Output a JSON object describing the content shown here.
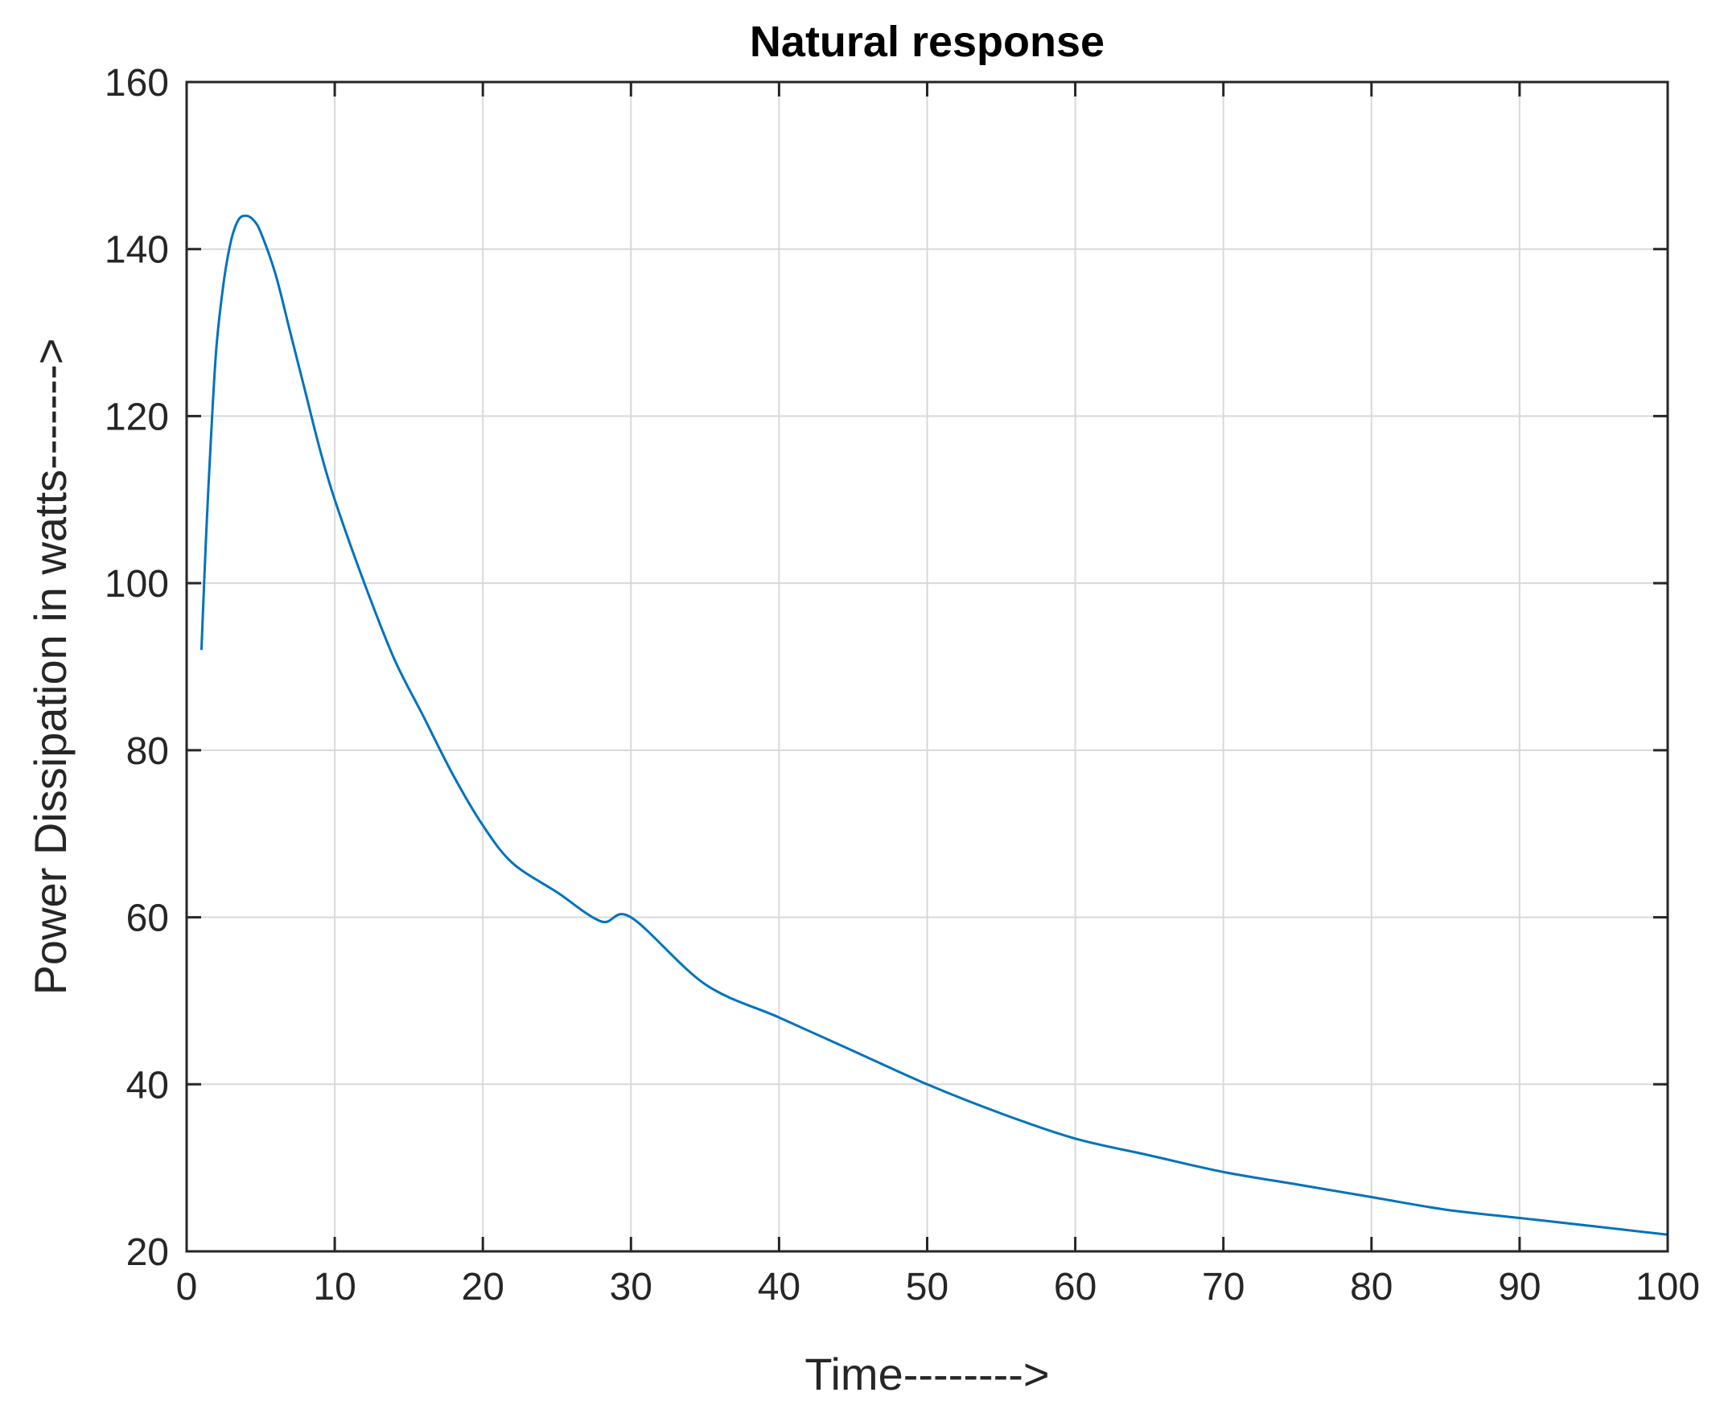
{
  "chart_data": {
    "type": "line",
    "title": "Natural response",
    "xlabel": "Time-------->",
    "ylabel": "Power Dissipation in watts------->",
    "xlim": [
      0,
      100
    ],
    "ylim": [
      20,
      160
    ],
    "xticks": [
      0,
      10,
      20,
      30,
      40,
      50,
      60,
      70,
      80,
      90,
      100
    ],
    "yticks": [
      20,
      40,
      60,
      80,
      100,
      120,
      140,
      160
    ],
    "grid": true,
    "series": [
      {
        "color": "#0072bd",
        "x": [
          1,
          1.3,
          1.6,
          2,
          2.5,
          3,
          3.5,
          4,
          4.5,
          5,
          6,
          7,
          8,
          9,
          10,
          12,
          14,
          16,
          18,
          20,
          22,
          25,
          28,
          30,
          35,
          40,
          45,
          50,
          55,
          60,
          65,
          70,
          75,
          80,
          85,
          90,
          95,
          100
        ],
        "y": [
          92,
          105,
          116,
          128,
          136,
          141,
          143.5,
          144,
          143.5,
          142,
          137,
          130,
          123,
          116,
          110,
          100,
          91,
          84,
          77,
          71,
          66.5,
          63,
          59.5,
          60,
          52,
          48,
          44,
          40,
          36.5,
          33.5,
          31.5,
          29.5,
          28,
          26.5,
          25,
          24,
          23,
          22
        ]
      }
    ]
  }
}
